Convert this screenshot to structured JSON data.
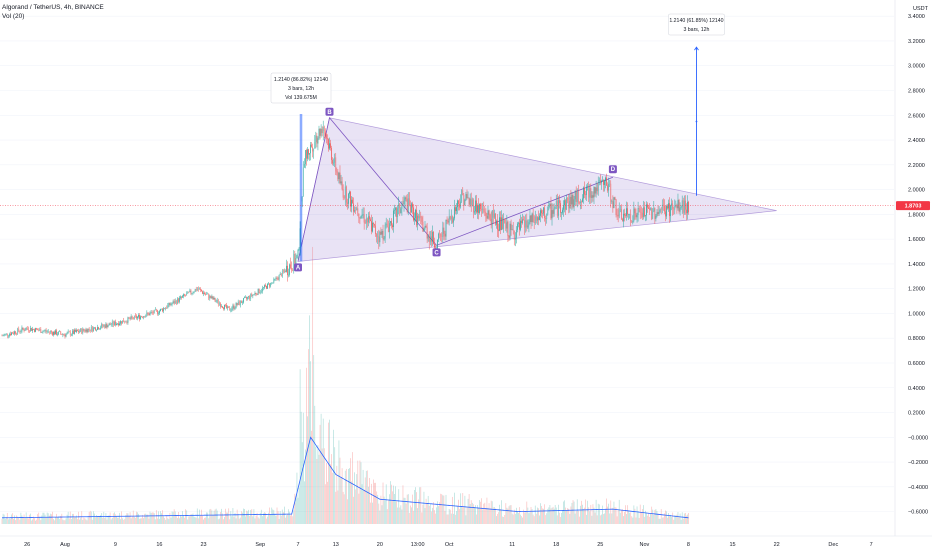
{
  "header": {
    "symbol_line": "Algorand / TetherUS, 4h, BINANCE",
    "volume_line": "Vol (20)"
  },
  "price_axis": {
    "unit": "USDT",
    "labels": [
      "3.4000",
      "3.2000",
      "3.0000",
      "2.8000",
      "2.6000",
      "2.4000",
      "2.2000",
      "2.0000",
      "1.8000",
      "1.6000",
      "1.4000",
      "1.2000",
      "1.0000",
      "0.8000",
      "0.6000",
      "0.4000",
      "0.2000",
      "−0.0000",
      "−0.2000",
      "−0.4000",
      "−0.6000"
    ]
  },
  "time_axis": {
    "labels": [
      "26",
      "Aug",
      "9",
      "16",
      "23",
      "Sep",
      "7",
      "13",
      "20",
      "13:00",
      "Oct",
      "11",
      "18",
      "25",
      "Nov",
      "8",
      "15",
      "22",
      "Dec",
      "7"
    ]
  },
  "current_price": {
    "label": "1.8703",
    "value": 1.8703,
    "color": "#f23645"
  },
  "annotations": {
    "first": {
      "line1": "1.2140 (86.82%) 12140",
      "line2": "3 bars, 12h",
      "line3": "Vol 139.675M"
    },
    "projection": {
      "line1": "1.2140 (61.85%) 12140",
      "line2": "3 bars, 12h"
    }
  },
  "pattern_points": {
    "A": "A",
    "B": "B",
    "C": "C",
    "D": "D"
  },
  "colors": {
    "up": "#26a69a",
    "down": "#ef5350",
    "triangle": "#7e57c2",
    "measure": "#2962ff",
    "volume_ma": "#2962ff"
  },
  "chart_data": {
    "type": "candlestick",
    "title": "Algorand / TetherUS, 4h, BINANCE",
    "ylim": [
      -0.7,
      3.45
    ],
    "trend": [
      {
        "date": "2021-07-22",
        "value": 0.82
      },
      {
        "date": "2021-07-26",
        "value": 0.88
      },
      {
        "date": "2021-08-01",
        "value": 0.83
      },
      {
        "date": "2021-08-09",
        "value": 0.92
      },
      {
        "date": "2021-08-16",
        "value": 1.02
      },
      {
        "date": "2021-08-22",
        "value": 1.2
      },
      {
        "date": "2021-08-27",
        "value": 1.03
      },
      {
        "date": "2021-09-03",
        "value": 1.25
      },
      {
        "date": "2021-09-07",
        "value": 1.45
      },
      {
        "date": "2021-09-08",
        "value": 2.25
      },
      {
        "date": "2021-09-11",
        "value": 2.52
      },
      {
        "date": "2021-09-14",
        "value": 2.0
      },
      {
        "date": "2021-09-20",
        "value": 1.62
      },
      {
        "date": "2021-09-24",
        "value": 1.9
      },
      {
        "date": "2021-09-29",
        "value": 1.55
      },
      {
        "date": "2021-10-03",
        "value": 1.95
      },
      {
        "date": "2021-10-11",
        "value": 1.65
      },
      {
        "date": "2021-10-18",
        "value": 1.85
      },
      {
        "date": "2021-10-26",
        "value": 2.05
      },
      {
        "date": "2021-10-28",
        "value": 1.78
      },
      {
        "date": "2021-11-06",
        "value": 1.85
      },
      {
        "date": "2021-11-08",
        "value": 1.8703
      }
    ],
    "volume_ma": [
      {
        "date": "2021-07-22",
        "value": 0.05
      },
      {
        "date": "2021-09-06",
        "value": 0.08
      },
      {
        "date": "2021-09-09",
        "value": 0.7
      },
      {
        "date": "2021-09-13",
        "value": 0.4
      },
      {
        "date": "2021-09-20",
        "value": 0.2
      },
      {
        "date": "2021-10-01",
        "value": 0.15
      },
      {
        "date": "2021-10-12",
        "value": 0.1
      },
      {
        "date": "2021-10-27",
        "value": 0.12
      },
      {
        "date": "2021-11-08",
        "value": 0.05
      }
    ],
    "pattern": {
      "A": {
        "date": "2021-09-07",
        "price": 1.42
      },
      "B": {
        "date": "2021-09-12",
        "price": 2.58
      },
      "C": {
        "date": "2021-09-29",
        "price": 1.55
      },
      "D": {
        "date": "2021-10-27",
        "price": 2.1
      },
      "apex": {
        "date": "2021-11-22",
        "price": 1.83
      }
    },
    "measure": {
      "start_date": "2021-09-07",
      "start_price": 1.42,
      "end_price": 2.61
    },
    "projection": {
      "date": "2021-11-08",
      "start_price": 1.95,
      "end_price": 3.15
    }
  }
}
